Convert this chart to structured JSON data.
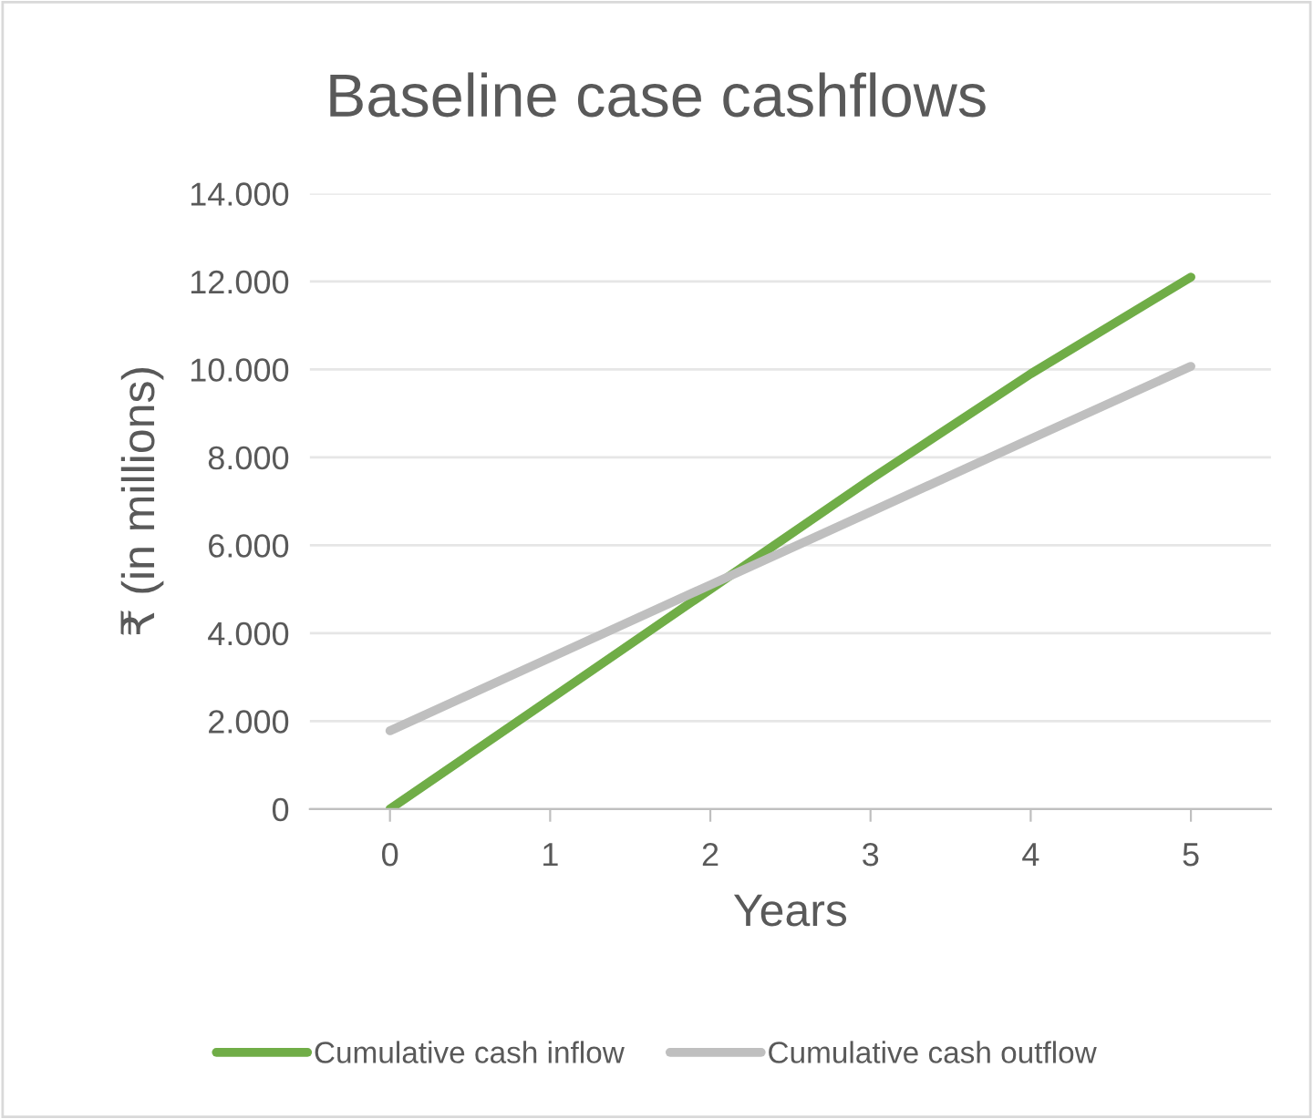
{
  "chart_data": {
    "type": "line",
    "title": "Baseline case cashflows",
    "xlabel": "Years",
    "ylabel": "₹ (in millions)",
    "categories": [
      "0",
      "1",
      "2",
      "3",
      "4",
      "5"
    ],
    "series": [
      {
        "name": "Cumulative cash inflow",
        "color": "#70ad47",
        "values": [
          0,
          2500,
          5000,
          7500,
          9900,
          12100
        ]
      },
      {
        "name": "Cumulative cash outflow",
        "color": "#bfbfbf",
        "values": [
          1780,
          3440,
          5100,
          6760,
          8420,
          10070
        ]
      }
    ],
    "ylim": [
      0,
      14000
    ],
    "yticks": [
      0,
      {
        "value": 2000,
        "label": "2.000"
      },
      {
        "value": 4000,
        "label": "4.000"
      },
      {
        "value": 6000,
        "label": "6.000"
      },
      {
        "value": 8000,
        "label": "8.000"
      },
      {
        "value": 10000,
        "label": "10.000"
      },
      {
        "value": 12000,
        "label": "12.000"
      },
      {
        "value": 14000,
        "label": "14.000"
      }
    ],
    "grid": "y",
    "legend": "bottom",
    "marker": "none",
    "line_style": "solid"
  }
}
